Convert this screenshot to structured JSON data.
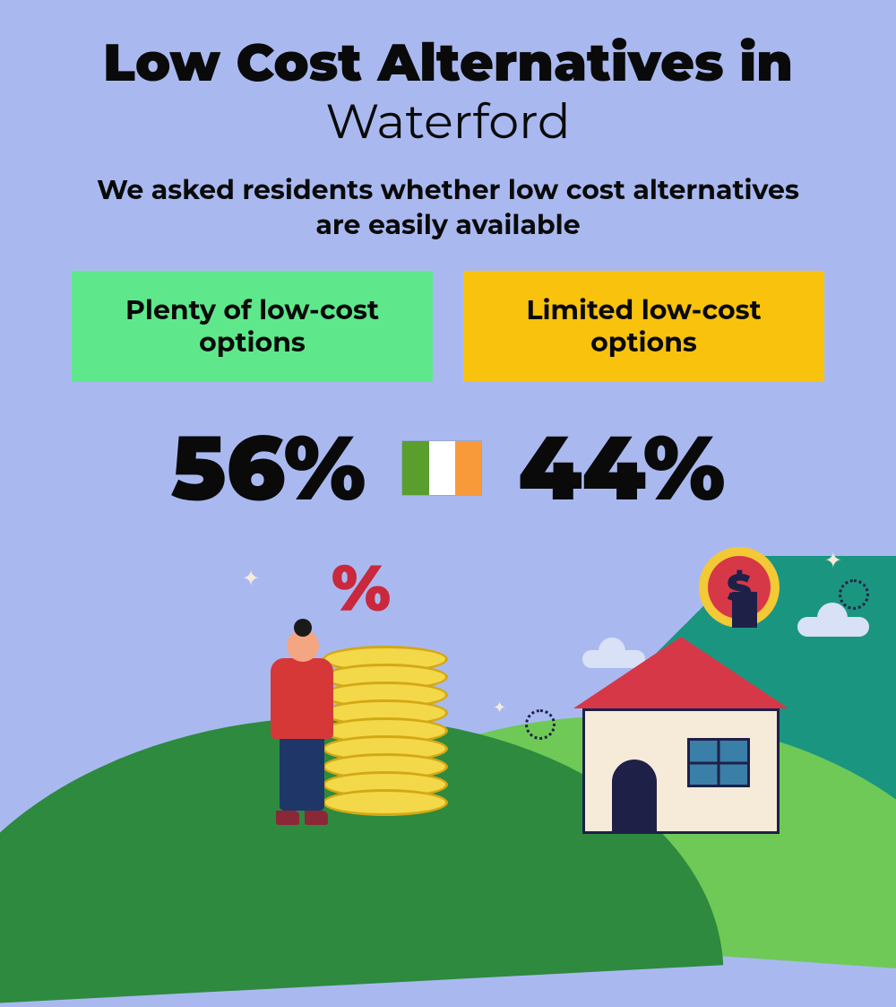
{
  "title_main": "Low Cost Alternatives in",
  "title_city": "Waterford",
  "subtitle": "We asked residents whether low cost alternatives are easily available",
  "options": {
    "left": {
      "label": "Plenty of low-cost options",
      "bg_color": "#5ee88b",
      "percent": "56%"
    },
    "right": {
      "label": "Limited low-cost options",
      "bg_color": "#f8c20d",
      "percent": "44%"
    }
  },
  "flag": {
    "colors": [
      "#5a9e2e",
      "#ffffff",
      "#f89a3a"
    ]
  },
  "colors": {
    "background": "#a9b9f0",
    "text": "#0a0a0a",
    "hill_dark": "#2d8a3e",
    "hill_light": "#6fc957",
    "teal": "#1a9680",
    "coin": "#f3d84a",
    "coin_border": "#d4a815",
    "red": "#d63848",
    "navy": "#1f2048",
    "house_wall": "#f5ebd8",
    "skin": "#f4a582",
    "pants": "#1f3768",
    "cloud": "#d8e1f5"
  },
  "dollar_symbol": "$",
  "percent_symbol": "%"
}
